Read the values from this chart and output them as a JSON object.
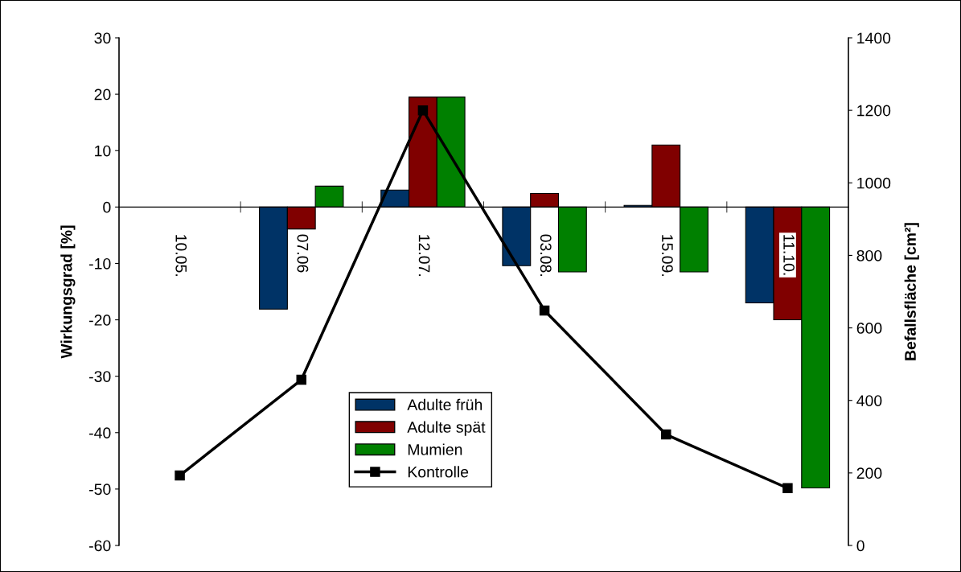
{
  "chart_data": {
    "type": "bar",
    "categories": [
      "10.05.",
      "07.06",
      "12.07.",
      "03.08.",
      "15.09.",
      "11.10."
    ],
    "ylabel": "Wirkungsgrad [%]",
    "y2label": "Befallsfläche [cm²]",
    "series": [
      {
        "name": "Adulte früh",
        "color": "#003366",
        "values": [
          null,
          -18.1,
          3.0,
          -10.4,
          0.3,
          -17.0
        ]
      },
      {
        "name": "Adulte spät",
        "color": "#800000",
        "values": [
          null,
          -3.9,
          19.5,
          2.4,
          11.0,
          -20.0
        ]
      },
      {
        "name": "Mumien",
        "color": "#008000",
        "values": [
          null,
          3.7,
          19.5,
          -11.5,
          -11.5,
          -49.8
        ]
      },
      {
        "name": "Kontrolle",
        "type": "line",
        "axis": "y2",
        "color": "#000000",
        "marker": "square",
        "values": [
          193,
          457,
          1200,
          648,
          306,
          158
        ]
      }
    ],
    "ylim": [
      -60,
      30
    ],
    "yticks": [
      -60,
      -50,
      -40,
      -30,
      -20,
      -10,
      0,
      10,
      20,
      30
    ],
    "y2lim": [
      0,
      1400
    ],
    "y2ticks": [
      0,
      200,
      400,
      600,
      800,
      1000,
      1200,
      1400
    ],
    "grid": false,
    "legend": "bottom"
  }
}
